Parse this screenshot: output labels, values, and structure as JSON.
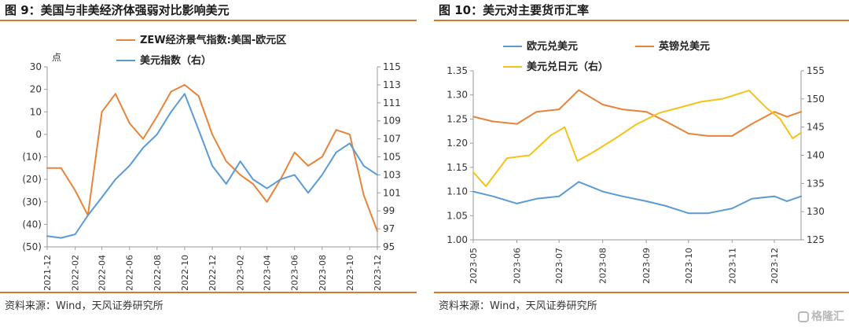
{
  "left": {
    "title": "图 9：美国与非美经济体强弱对比影响美元",
    "source": "资料来源：Wind，天风证券研究所",
    "chart_data": {
      "type": "line",
      "y_left_unit": "点",
      "ylim_left": [
        -50,
        30
      ],
      "yticks_left": [
        30,
        20,
        10,
        0,
        -10,
        -20,
        -30,
        -40,
        -50
      ],
      "ytick_labels_left": [
        "30",
        "20",
        "10",
        "0",
        "(10)",
        "(20)",
        "(30)",
        "(40)",
        "(50)"
      ],
      "ylim_right": [
        95,
        115
      ],
      "yticks_right": [
        115,
        113,
        111,
        109,
        107,
        105,
        103,
        101,
        99,
        97,
        95
      ],
      "xlim": [
        "2021-12",
        "2023-12"
      ],
      "x_tick_labels": [
        "2021-12",
        "2022-02",
        "2022-04",
        "2022-06",
        "2022-08",
        "2022-10",
        "2022-12",
        "2023-02",
        "2023-04",
        "2023-06",
        "2023-08",
        "2023-10",
        "2023-12"
      ],
      "legend_position": "top-center",
      "grid": false,
      "series": [
        {
          "name": "ZEW经济景气指数:美国-欧元区",
          "axis": "left",
          "color": "#e8833a",
          "points": [
            [
              "2021-12",
              -15
            ],
            [
              "2022-01",
              -15
            ],
            [
              "2022-02",
              -25
            ],
            [
              "2022-03",
              -36
            ],
            [
              "2022-04",
              10
            ],
            [
              "2022-05",
              18
            ],
            [
              "2022-06",
              5
            ],
            [
              "2022-07",
              -2
            ],
            [
              "2022-08",
              8
            ],
            [
              "2022-09",
              19
            ],
            [
              "2022-10",
              22
            ],
            [
              "2022-11",
              17
            ],
            [
              "2022-12",
              0
            ],
            [
              "2023-01",
              -12
            ],
            [
              "2023-02",
              -18
            ],
            [
              "2023-03",
              -22
            ],
            [
              "2023-04",
              -30
            ],
            [
              "2023-05",
              -20
            ],
            [
              "2023-06",
              -8
            ],
            [
              "2023-07",
              -14
            ],
            [
              "2023-08",
              -10
            ],
            [
              "2023-09",
              2
            ],
            [
              "2023-10",
              0
            ],
            [
              "2023-11",
              -27
            ],
            [
              "2023-12",
              -43
            ]
          ]
        },
        {
          "name": "美元指数（右）",
          "axis": "right",
          "color": "#5b9bd5",
          "points": [
            [
              "2021-12",
              96.2
            ],
            [
              "2022-01",
              96.0
            ],
            [
              "2022-02",
              96.4
            ],
            [
              "2022-03",
              98.5
            ],
            [
              "2022-04",
              100.5
            ],
            [
              "2022-05",
              102.5
            ],
            [
              "2022-06",
              104.0
            ],
            [
              "2022-07",
              106.0
            ],
            [
              "2022-08",
              107.5
            ],
            [
              "2022-09",
              110.0
            ],
            [
              "2022-10",
              112.0
            ],
            [
              "2022-11",
              108.0
            ],
            [
              "2022-12",
              104.0
            ],
            [
              "2023-01",
              102.0
            ],
            [
              "2023-02",
              104.5
            ],
            [
              "2023-03",
              102.5
            ],
            [
              "2023-04",
              101.5
            ],
            [
              "2023-05",
              102.5
            ],
            [
              "2023-06",
              103.0
            ],
            [
              "2023-07",
              101.0
            ],
            [
              "2023-08",
              103.0
            ],
            [
              "2023-09",
              105.5
            ],
            [
              "2023-10",
              106.5
            ],
            [
              "2023-11",
              104.0
            ],
            [
              "2023-12",
              103.0
            ]
          ]
        }
      ]
    }
  },
  "right": {
    "title": "图 10：美元对主要货币汇率",
    "source": "资料来源：Wind，天风证券研究所",
    "chart_data": {
      "type": "line",
      "ylim_left": [
        1.0,
        1.35
      ],
      "yticks_left": [
        1.35,
        1.3,
        1.25,
        1.2,
        1.15,
        1.1,
        1.05,
        1.0
      ],
      "ytick_labels_left": [
        "1.35",
        "1.30",
        "1.25",
        "1.20",
        "1.15",
        "1.10",
        "1.05",
        "1.00"
      ],
      "ylim_right": [
        125,
        155
      ],
      "yticks_right": [
        155,
        150,
        145,
        140,
        135,
        130,
        125
      ],
      "xlim": [
        "2023-05",
        "2023-12-20"
      ],
      "x_tick_labels": [
        "2023-05",
        "2023-06",
        "2023-07",
        "2023-08",
        "2023-09",
        "2023-10",
        "2023-11",
        "2023-12"
      ],
      "legend_position": "top-center",
      "grid": false,
      "series": [
        {
          "name": "欧元兑美元",
          "axis": "left",
          "color": "#5b9bd5",
          "points": [
            [
              "2023-05-01",
              1.1
            ],
            [
              "2023-05-15",
              1.09
            ],
            [
              "2023-06-01",
              1.075
            ],
            [
              "2023-06-15",
              1.085
            ],
            [
              "2023-07-01",
              1.09
            ],
            [
              "2023-07-15",
              1.12
            ],
            [
              "2023-08-01",
              1.1
            ],
            [
              "2023-08-15",
              1.09
            ],
            [
              "2023-09-01",
              1.08
            ],
            [
              "2023-09-15",
              1.07
            ],
            [
              "2023-10-01",
              1.055
            ],
            [
              "2023-10-15",
              1.055
            ],
            [
              "2023-11-01",
              1.065
            ],
            [
              "2023-11-15",
              1.085
            ],
            [
              "2023-12-01",
              1.09
            ],
            [
              "2023-12-10",
              1.08
            ],
            [
              "2023-12-20",
              1.09
            ]
          ]
        },
        {
          "name": "英镑兑美元",
          "axis": "left",
          "color": "#e8833a",
          "points": [
            [
              "2023-05-01",
              1.255
            ],
            [
              "2023-05-15",
              1.245
            ],
            [
              "2023-06-01",
              1.24
            ],
            [
              "2023-06-15",
              1.265
            ],
            [
              "2023-07-01",
              1.27
            ],
            [
              "2023-07-15",
              1.31
            ],
            [
              "2023-08-01",
              1.28
            ],
            [
              "2023-08-15",
              1.27
            ],
            [
              "2023-09-01",
              1.265
            ],
            [
              "2023-09-15",
              1.245
            ],
            [
              "2023-10-01",
              1.22
            ],
            [
              "2023-10-15",
              1.215
            ],
            [
              "2023-11-01",
              1.215
            ],
            [
              "2023-11-15",
              1.24
            ],
            [
              "2023-12-01",
              1.265
            ],
            [
              "2023-12-10",
              1.255
            ],
            [
              "2023-12-20",
              1.265
            ]
          ]
        },
        {
          "name": "美元兑日元（右）",
          "axis": "right",
          "color": "#f5c218",
          "points": [
            [
              "2023-05-01",
              137
            ],
            [
              "2023-05-10",
              134.5
            ],
            [
              "2023-05-25",
              139.5
            ],
            [
              "2023-06-10",
              140
            ],
            [
              "2023-06-25",
              143.5
            ],
            [
              "2023-07-05",
              145
            ],
            [
              "2023-07-14",
              139
            ],
            [
              "2023-07-25",
              140.5
            ],
            [
              "2023-08-10",
              143
            ],
            [
              "2023-08-25",
              145.5
            ],
            [
              "2023-09-10",
              147.5
            ],
            [
              "2023-09-25",
              148.5
            ],
            [
              "2023-10-10",
              149.5
            ],
            [
              "2023-10-25",
              150
            ],
            [
              "2023-11-13",
              151.5
            ],
            [
              "2023-11-25",
              148.5
            ],
            [
              "2023-12-05",
              146.5
            ],
            [
              "2023-12-14",
              143
            ],
            [
              "2023-12-20",
              144
            ]
          ]
        }
      ]
    }
  },
  "watermark": {
    "text": "格隆汇",
    "color": "#b9b9b9"
  }
}
